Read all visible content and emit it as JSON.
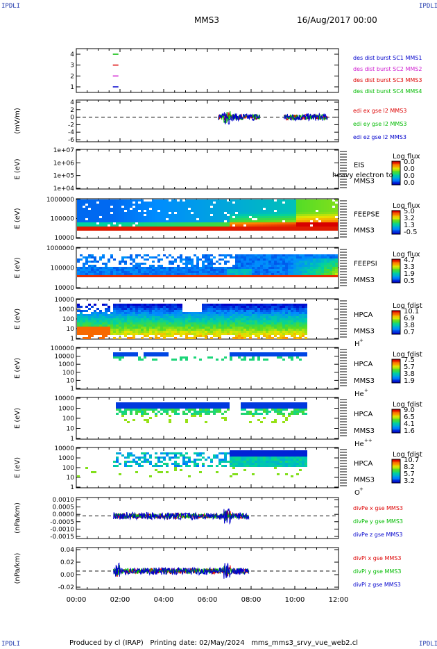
{
  "header": {
    "spacecraft": "MMS3",
    "date": "16/Aug/2017 00:00"
  },
  "corner_tag": "IPDLI",
  "footer": {
    "text": "Produced by cl (IRAP)   Printing date: 02/May/2024   mms_mms3_srvy_vue_web2.cl"
  },
  "x_axis": {
    "ticks": [
      "00:00",
      "02:00",
      "04:00",
      "06:00",
      "08:00",
      "10:00",
      "12:00"
    ],
    "range_hours": [
      0,
      12
    ]
  },
  "chart_data": [
    {
      "id": "burst",
      "type": "scatter",
      "yticks": [
        "4",
        "3",
        "2",
        "1"
      ],
      "ylim": [
        0.5,
        4.5
      ],
      "series": [
        {
          "name": "des dist burst SC1 MMS1",
          "color": "#0000cc",
          "y": 1
        },
        {
          "name": "des dist burst SC2 MMS2",
          "color": "#d020d0",
          "y": 2
        },
        {
          "name": "des dist burst SC3 MMS3",
          "color": "#dd0000",
          "y": 3
        },
        {
          "name": "des dist burst SC4 MMS4",
          "color": "#00bb00",
          "y": 4
        }
      ],
      "x_hours": 1.8
    },
    {
      "id": "edi",
      "type": "line",
      "ylabel": "(mV/m)",
      "yticks": [
        "4",
        "2",
        "0",
        "-2",
        "-4",
        "-6"
      ],
      "ylim": [
        -6,
        4
      ],
      "series": [
        {
          "name": "edi ex gse l2 MMS3",
          "color": "#dd0000"
        },
        {
          "name": "edi ey gse l2 MMS3",
          "color": "#00bb00"
        },
        {
          "name": "edi ez gse l2 MMS3",
          "color": "#0000cc"
        }
      ],
      "active_hours": [
        [
          6.5,
          8.4
        ],
        [
          9.5,
          11.5
        ]
      ]
    },
    {
      "id": "eis",
      "type": "heatmap",
      "ylabel": "E (eV)",
      "yticks": [
        "1e+07",
        "1e+06",
        "1e+05",
        "1e+04"
      ],
      "right_labels": [
        "EIS",
        "MMS3"
      ],
      "overlay_text": "heavy electron to",
      "colorbar": {
        "title": "Log flux",
        "ticks": [
          "0.0",
          "0.0",
          "0.0",
          "0.0"
        ]
      }
    },
    {
      "id": "feepse",
      "type": "heatmap",
      "ylabel": "E (eV)",
      "yticks": [
        "1000000",
        "100000",
        "10000"
      ],
      "right_labels": [
        "FEEPSE",
        "MMS3"
      ],
      "colorbar": {
        "title": "Log flux",
        "ticks": [
          "5.0",
          "3.2",
          "1.3",
          "-0.5"
        ]
      }
    },
    {
      "id": "feepsi",
      "type": "heatmap",
      "ylabel": "E (eV)",
      "yticks": [
        "1000000",
        "100000",
        "10000"
      ],
      "right_labels": [
        "FEEPSI",
        "MMS3"
      ],
      "colorbar": {
        "title": "Log flux",
        "ticks": [
          "4.7",
          "3.3",
          "1.9",
          "0.5"
        ]
      }
    },
    {
      "id": "hpca_h",
      "type": "heatmap",
      "ylabel": "E (eV)",
      "yticks": [
        "10000",
        "1000",
        "100",
        "10",
        "1"
      ],
      "right_labels": [
        "HPCA",
        "MMS3"
      ],
      "species": "H",
      "charge": "+",
      "colorbar": {
        "title": "Log fdist",
        "ticks": [
          "10.1",
          "6.9",
          "3.8",
          "0.7"
        ]
      },
      "data_hours": [
        0,
        10.45
      ]
    },
    {
      "id": "hpca_he1",
      "type": "heatmap",
      "ylabel": "E (eV)",
      "yticks": [
        "100000",
        "10000",
        "1000",
        "100",
        "10",
        "1"
      ],
      "right_labels": [
        "HPCA",
        "MMS3"
      ],
      "species": "He",
      "charge": "+",
      "colorbar": {
        "title": "Log fdist",
        "ticks": [
          "7.5",
          "5.7",
          "3.8",
          "1.9"
        ]
      }
    },
    {
      "id": "hpca_he2",
      "type": "heatmap",
      "ylabel": "E (eV)",
      "yticks": [
        "10000",
        "1000",
        "100",
        "10",
        "1"
      ],
      "right_labels": [
        "HPCA",
        "MMS3"
      ],
      "species": "He",
      "charge": "++",
      "colorbar": {
        "title": "Log fdist",
        "ticks": [
          "9.0",
          "6.5",
          "4.1",
          "1.6"
        ]
      }
    },
    {
      "id": "hpca_o",
      "type": "heatmap",
      "ylabel": "E (eV)",
      "yticks": [
        "10000",
        "1000",
        "100",
        "10",
        "1"
      ],
      "right_labels": [
        "HPCA",
        "MMS3"
      ],
      "species": "O",
      "charge": "+",
      "colorbar": {
        "title": "Log fdist",
        "ticks": [
          "10.7",
          "8.2",
          "5.7",
          "3.2"
        ]
      }
    },
    {
      "id": "divpe",
      "type": "line",
      "ylabel": "(nPa/km)",
      "yticks": [
        "0.0010",
        "0.0005",
        "0.0000",
        "-0.0005",
        "-0.0010",
        "-0.0015"
      ],
      "ylim": [
        -0.0015,
        0.0012
      ],
      "series": [
        {
          "name": "divPe x gse MMS3",
          "color": "#dd0000"
        },
        {
          "name": "divPe y gse MMS3",
          "color": "#00bb00"
        },
        {
          "name": "divPe z gse MMS3",
          "color": "#0000cc"
        }
      ],
      "active_hours": [
        [
          1.7,
          7.9
        ]
      ]
    },
    {
      "id": "divpi",
      "type": "line",
      "ylabel": "(nPa/km)",
      "yticks": [
        "0.04",
        "0.02",
        "0.00",
        "-0.02"
      ],
      "ylim": [
        -0.03,
        0.04
      ],
      "series": [
        {
          "name": "divPi x gse MMS3",
          "color": "#dd0000"
        },
        {
          "name": "divPi y gse MMS3",
          "color": "#00bb00"
        },
        {
          "name": "divPi z gse MMS3",
          "color": "#0000cc"
        }
      ],
      "active_hours": [
        [
          1.7,
          7.9
        ]
      ]
    }
  ]
}
